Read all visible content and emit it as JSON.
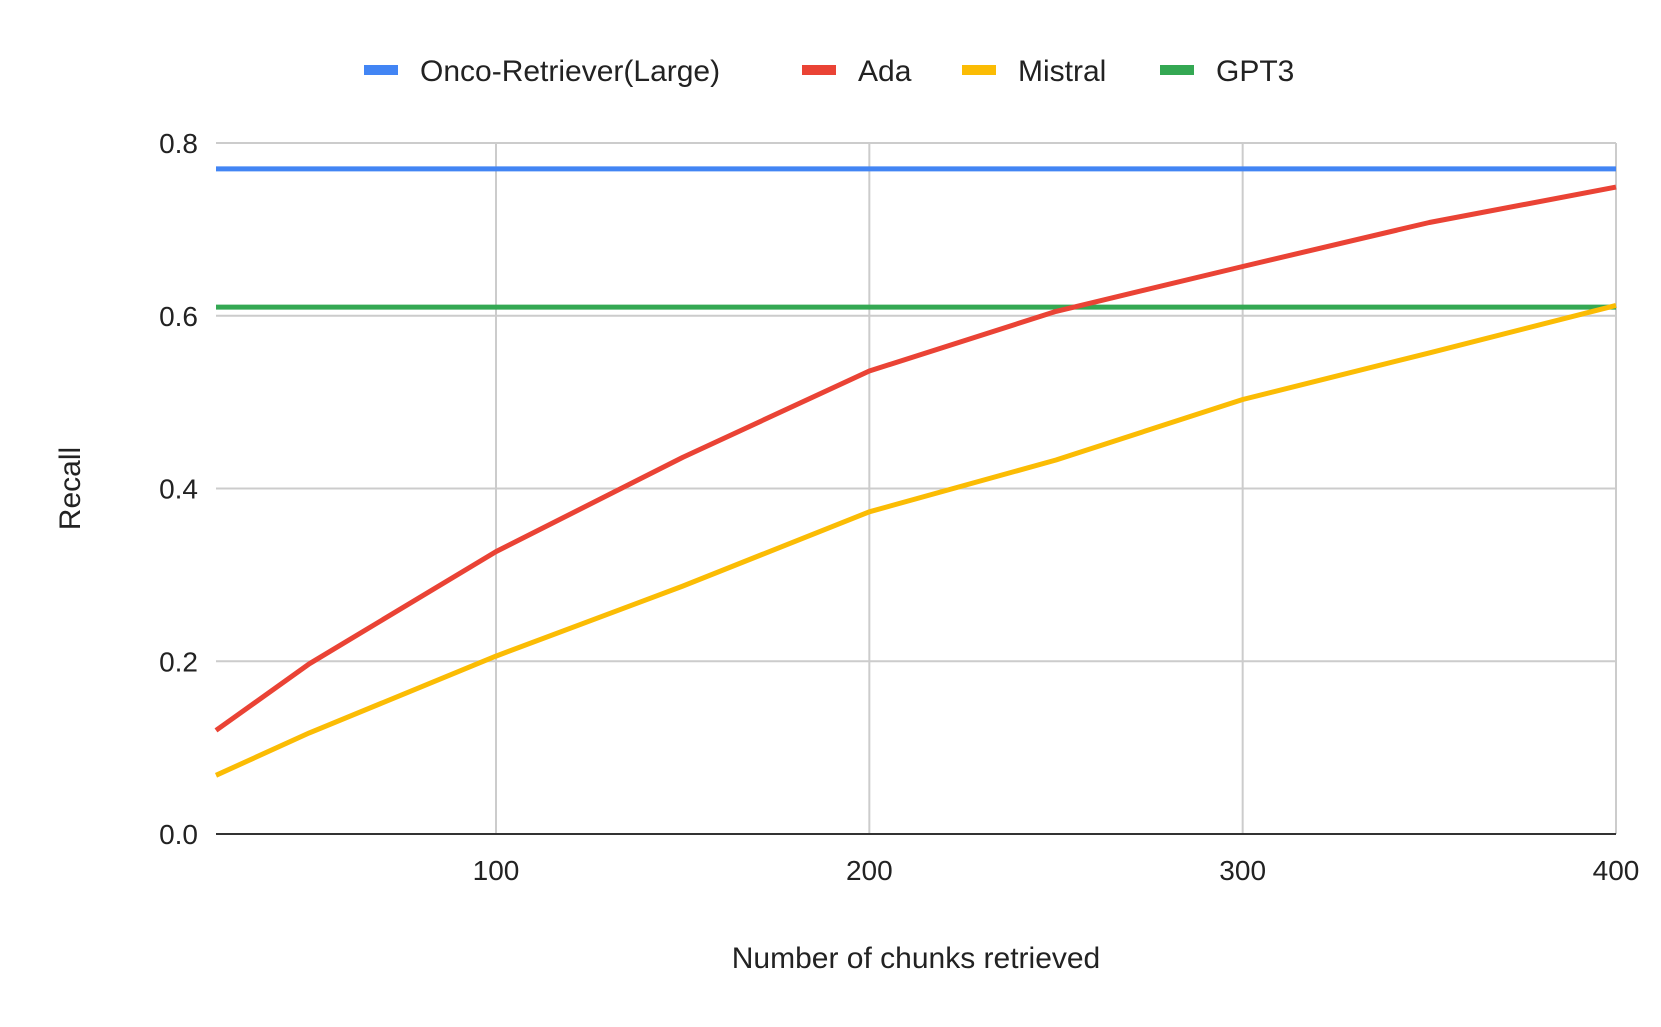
{
  "chart_data": {
    "type": "line",
    "title": "",
    "xlabel": "Number of chunks retrieved",
    "ylabel": "Recall",
    "xlim": [
      25,
      400
    ],
    "ylim": [
      0,
      0.8
    ],
    "x_ticks": [
      {
        "value": 100,
        "label": "100"
      },
      {
        "value": 200,
        "label": "200"
      },
      {
        "value": 300,
        "label": "300"
      },
      {
        "value": 400,
        "label": "400"
      }
    ],
    "y_ticks": [
      {
        "value": 0,
        "label": "0.0"
      },
      {
        "value": 0.2,
        "label": "0.2"
      },
      {
        "value": 0.4,
        "label": "0.4"
      },
      {
        "value": 0.6,
        "label": "0.6"
      },
      {
        "value": 0.8,
        "label": "0.8"
      }
    ],
    "grid": true,
    "legend_position": "top",
    "series": [
      {
        "name": "Onco-Retriever(Large)",
        "color": "#4285F4",
        "points": [
          [
            25,
            0.77
          ],
          [
            400,
            0.77
          ]
        ]
      },
      {
        "name": "Ada",
        "color": "#EA4335",
        "points": [
          [
            25,
            0.12
          ],
          [
            50,
            0.197
          ],
          [
            100,
            0.327
          ],
          [
            150,
            0.436
          ],
          [
            200,
            0.536
          ],
          [
            250,
            0.605
          ],
          [
            300,
            0.657
          ],
          [
            350,
            0.708
          ],
          [
            400,
            0.749
          ]
        ]
      },
      {
        "name": "Mistral",
        "color": "#FBBC04",
        "points": [
          [
            25,
            0.068
          ],
          [
            50,
            0.117
          ],
          [
            100,
            0.206
          ],
          [
            150,
            0.287
          ],
          [
            200,
            0.373
          ],
          [
            250,
            0.433
          ],
          [
            300,
            0.503
          ],
          [
            350,
            0.557
          ],
          [
            400,
            0.612
          ]
        ]
      },
      {
        "name": "GPT3",
        "color": "#34A853",
        "points": [
          [
            25,
            0.61
          ],
          [
            400,
            0.61
          ]
        ]
      }
    ]
  }
}
